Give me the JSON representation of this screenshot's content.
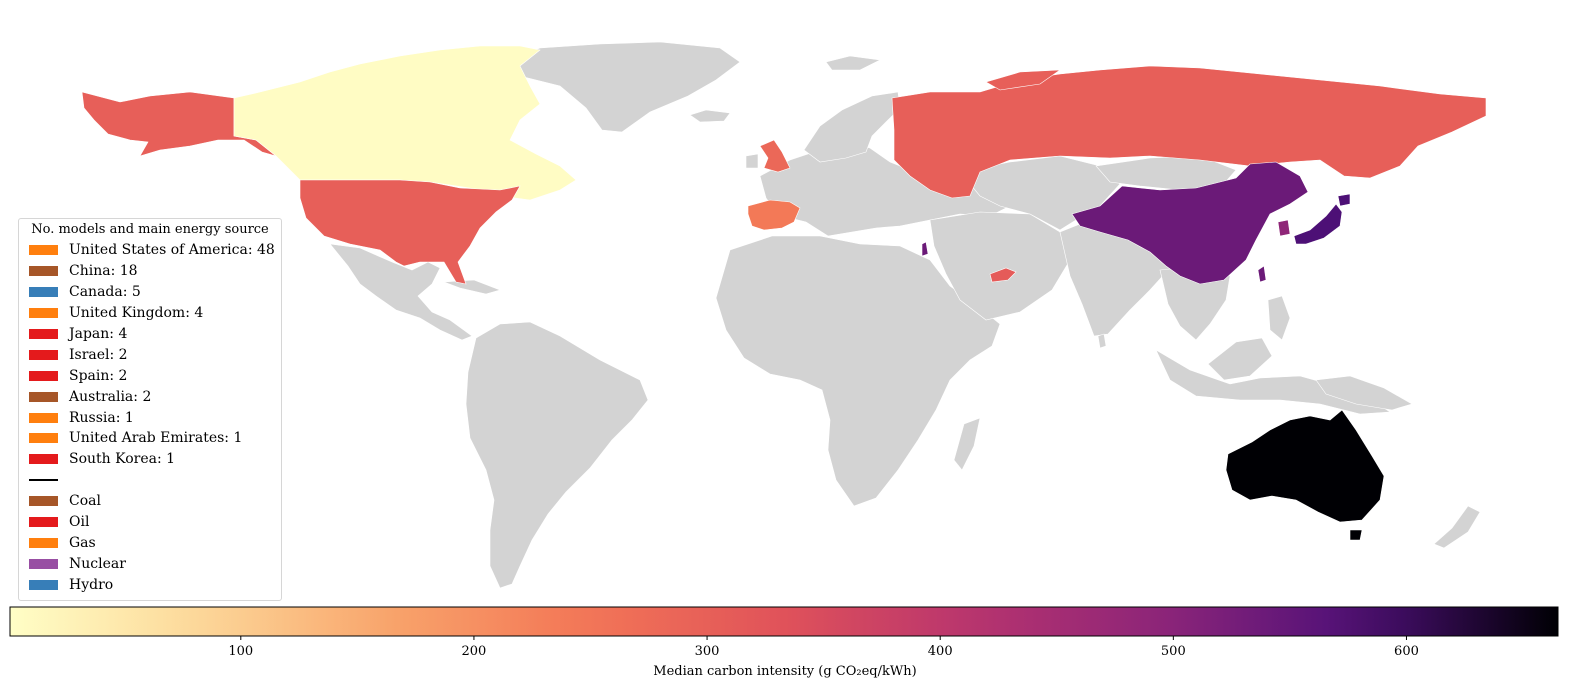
{
  "legend": {
    "title": "No. models and main energy source",
    "countries": [
      {
        "label": "United States of America: 48",
        "color": "#ff7f0e"
      },
      {
        "label": "China: 18",
        "color": "#a65628"
      },
      {
        "label": "Canada: 5",
        "color": "#377eb8"
      },
      {
        "label": "United Kingdom: 4",
        "color": "#ff7f0e"
      },
      {
        "label": "Japan: 4",
        "color": "#e41a1c"
      },
      {
        "label": "Israel: 2",
        "color": "#e41a1c"
      },
      {
        "label": "Spain: 2",
        "color": "#e41a1c"
      },
      {
        "label": "Australia: 2",
        "color": "#a65628"
      },
      {
        "label": "Russia: 1",
        "color": "#ff7f0e"
      },
      {
        "label": "United Arab Emirates: 1",
        "color": "#ff7f0e"
      },
      {
        "label": "South Korea: 1",
        "color": "#e41a1c"
      }
    ],
    "sources": [
      {
        "label": "Coal",
        "color": "#a65628"
      },
      {
        "label": "Oil",
        "color": "#e41a1c"
      },
      {
        "label": "Gas",
        "color": "#ff7f0e"
      },
      {
        "label": "Nuclear",
        "color": "#984ea3"
      },
      {
        "label": "Hydro",
        "color": "#377eb8"
      }
    ]
  },
  "colorbar": {
    "label": "Median carbon intensity (g CO₂eq/kWh)",
    "min": 1,
    "max": 665,
    "ticks": [
      100,
      200,
      300,
      400,
      500,
      600
    ],
    "colormap": "inferno_r"
  },
  "colors": {
    "no_data": "#d3d3d3"
  }
}
